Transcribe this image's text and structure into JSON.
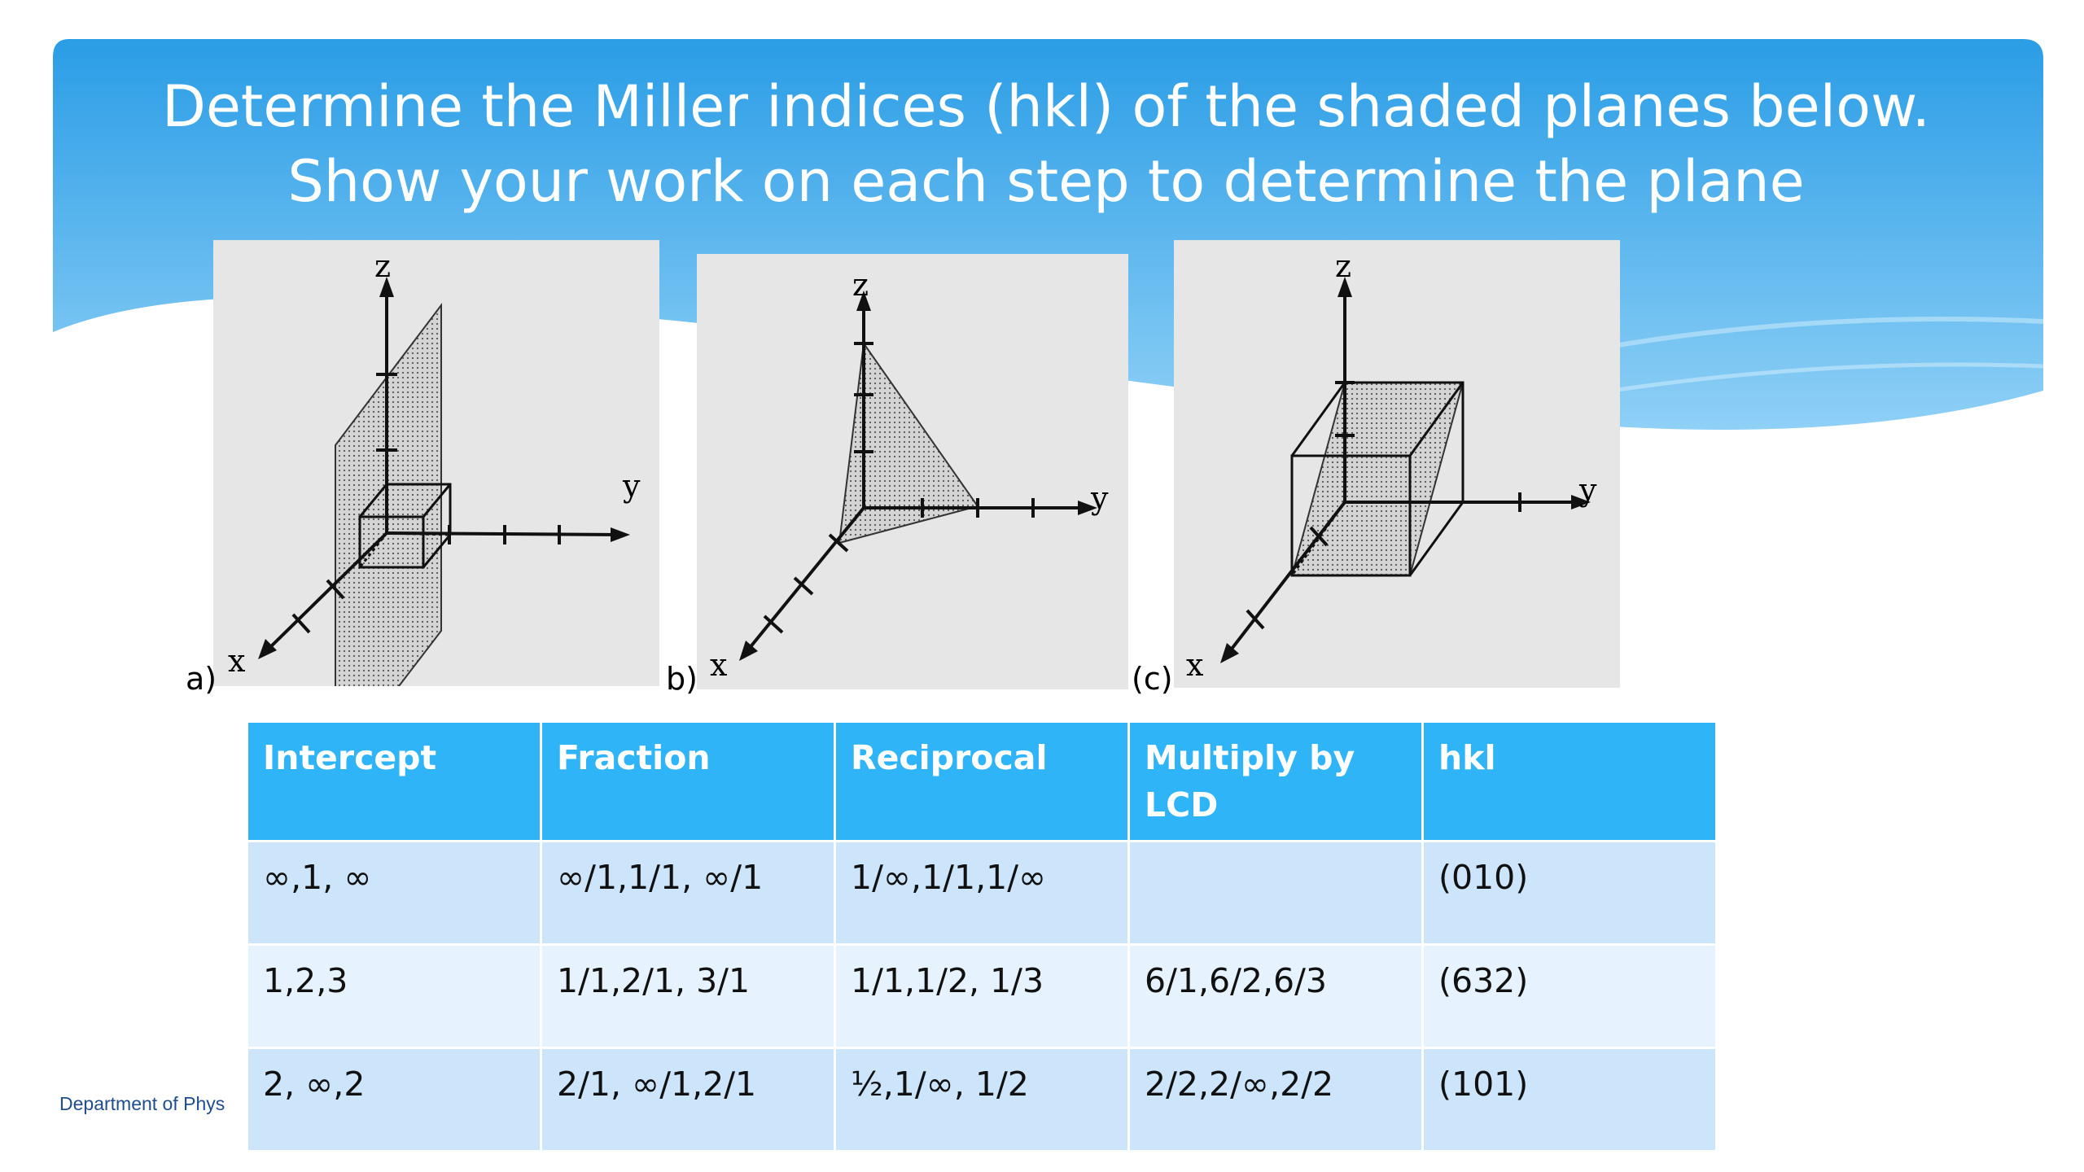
{
  "slide": {
    "title": "Determine the Miller indices (hkl) of the shaded planes below. Show your work on each step to determine the plane",
    "footer": "Department of Phys"
  },
  "figures": [
    {
      "label": "a)",
      "axis_x": "x",
      "axis_y": "y",
      "axis_z": "z"
    },
    {
      "label": "b)",
      "axis_x": "x",
      "axis_y": "y",
      "axis_z": "z"
    },
    {
      "label": "(c)",
      "axis_x": "x",
      "axis_y": "y",
      "axis_z": "z"
    }
  ],
  "table": {
    "headers": [
      "Intercept",
      "Fraction",
      "Reciprocal",
      "Multiply by LCD",
      "hkl"
    ],
    "rows": [
      [
        "∞,1, ∞",
        "∞/1,1/1, ∞/1",
        "1/∞,1/1,1/∞",
        "",
        "(010)"
      ],
      [
        "1,2,3",
        "1/1,2/1, 3/1",
        "1/1,1/2, 1/3",
        "6/1,6/2,6/3",
        "(632)"
      ],
      [
        "2, ∞,2",
        "2/1, ∞/1,2/1",
        "½,1/∞, 1/2",
        "2/2,2/∞,2/2",
        "(101)"
      ]
    ]
  },
  "colors": {
    "banner_top": "#2a9de6",
    "banner_bottom": "#8fd0f6",
    "header_fill": "#2fb5f7",
    "row_dark": "#cde5fb",
    "row_light": "#e6f2fd"
  }
}
